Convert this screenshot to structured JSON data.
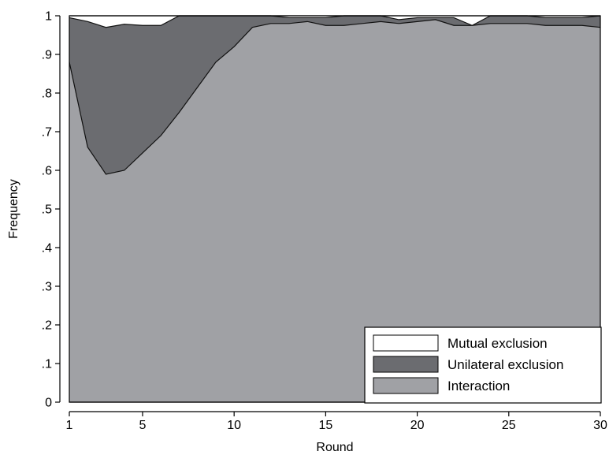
{
  "chart_data": {
    "type": "area",
    "stacked": true,
    "xlabel": "Round",
    "ylabel": "Frequency",
    "xlim": [
      1,
      30
    ],
    "ylim": [
      0,
      1
    ],
    "x": [
      1,
      2,
      3,
      4,
      5,
      6,
      7,
      8,
      9,
      10,
      11,
      12,
      13,
      14,
      15,
      16,
      17,
      18,
      19,
      20,
      21,
      22,
      23,
      24,
      25,
      26,
      27,
      28,
      29,
      30
    ],
    "x_ticks": [
      1,
      5,
      10,
      15,
      20,
      25,
      30
    ],
    "x_tick_labels": [
      "1",
      "5",
      "10",
      "15",
      "20",
      "25",
      "30"
    ],
    "y_ticks": [
      0,
      0.1,
      0.2,
      0.3,
      0.4,
      0.5,
      0.6,
      0.7,
      0.8,
      0.9,
      1
    ],
    "y_tick_labels": [
      "0",
      ".1",
      ".2",
      ".3",
      ".4",
      ".5",
      ".6",
      ".7",
      ".8",
      ".9",
      "1"
    ],
    "grid": false,
    "legend_position": "bottom-right",
    "series": [
      {
        "name": "Interaction",
        "color": "#a0a1a5",
        "values": [
          0.88,
          0.66,
          0.59,
          0.6,
          0.645,
          0.69,
          0.75,
          0.815,
          0.88,
          0.92,
          0.97,
          0.98,
          0.98,
          0.985,
          0.975,
          0.975,
          0.98,
          0.985,
          0.98,
          0.985,
          0.99,
          0.975,
          0.975,
          0.98,
          0.98,
          0.98,
          0.975,
          0.975,
          0.975,
          0.97
        ]
      },
      {
        "name": "Unilateral exclusion",
        "color": "#6b6c70",
        "values": [
          0.115,
          0.325,
          0.38,
          0.378,
          0.33,
          0.285,
          0.25,
          0.185,
          0.12,
          0.08,
          0.03,
          0.02,
          0.015,
          0.01,
          0.02,
          0.025,
          0.02,
          0.015,
          0.01,
          0.01,
          0.005,
          0.02,
          0.0,
          0.02,
          0.02,
          0.02,
          0.02,
          0.02,
          0.02,
          0.03
        ]
      },
      {
        "name": "Mutual exclusion",
        "color": "#ffffff",
        "values": [
          0.005,
          0.015,
          0.03,
          0.022,
          0.025,
          0.025,
          0.0,
          0.0,
          0.0,
          0.0,
          0.0,
          0.0,
          0.005,
          0.005,
          0.005,
          0.0,
          0.0,
          0.0,
          0.01,
          0.005,
          0.005,
          0.005,
          0.025,
          0.0,
          0.0,
          0.0,
          0.005,
          0.005,
          0.005,
          0.0
        ]
      }
    ],
    "legend": [
      "Mutual exclusion",
      "Unilateral exclusion",
      "Interaction"
    ]
  }
}
